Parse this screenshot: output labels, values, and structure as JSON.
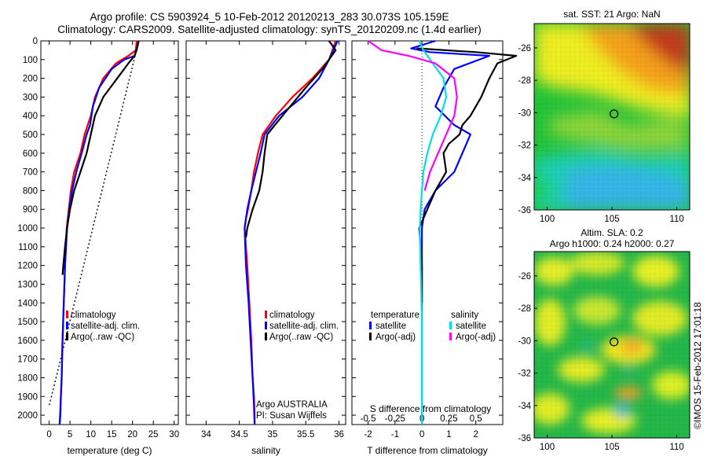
{
  "header": {
    "line1": "Argo profile: CS 5903924_5 10-Feb-2012 20120213_283 30.073S 105.159E",
    "line2": "Climatology: CARS2009. Satellite-adjusted climatology: synTS_20120209.nc (1.4d earlier)"
  },
  "colors": {
    "climatology": "#ff0000",
    "satellite": "#0000ff",
    "argo": "#000000",
    "sat_salinity": "#00e0e0",
    "argo_salinity": "#ff00ff"
  },
  "chart_data": [
    {
      "id": "temperature",
      "type": "line",
      "xlabel": "temperature (deg C)",
      "ylabel": "",
      "xlim": [
        -2,
        31
      ],
      "ylim": [
        2050,
        0
      ],
      "xticks": [
        0,
        5,
        10,
        15,
        20,
        25,
        30
      ],
      "yticks": [
        0,
        100,
        200,
        300,
        400,
        500,
        600,
        700,
        800,
        900,
        1000,
        1100,
        1200,
        1300,
        1400,
        1500,
        1600,
        1700,
        1800,
        1900,
        2000
      ],
      "legend": [
        "climatology",
        "satellite-adj. clim.",
        "Argo(..raw -QC)"
      ],
      "series": [
        {
          "name": "climatology",
          "color": "#ff0000",
          "x": [
            21,
            20.8,
            19,
            16,
            13,
            11,
            10,
            8.5,
            7.5,
            6,
            5.2,
            4.7,
            4.2,
            3.8,
            3.5,
            3.2,
            3,
            2.8,
            2.6,
            2.5
          ],
          "y": [
            0,
            50,
            80,
            120,
            200,
            300,
            400,
            500,
            600,
            700,
            800,
            900,
            1000,
            1200,
            1400,
            1600,
            1800,
            1900,
            2000,
            2050
          ]
        },
        {
          "name": "satellite-adj. clim.",
          "color": "#0000ff",
          "x": [
            21.5,
            21,
            20.5,
            18,
            15,
            12,
            10.5,
            9.8,
            9,
            7.8,
            6.5,
            5.5,
            4.8,
            4.3,
            3.8,
            3.5,
            3.2,
            3,
            2.8,
            2.7,
            2.6,
            2.5
          ],
          "y": [
            0,
            50,
            80,
            100,
            150,
            250,
            350,
            450,
            500,
            600,
            700,
            800,
            900,
            1000,
            1200,
            1400,
            1600,
            1800,
            1900,
            2000,
            2020,
            2050
          ]
        },
        {
          "name": "Argo(..raw -QC)",
          "color": "#000000",
          "x": [
            21.5,
            20.5,
            19,
            17,
            13,
            11,
            10,
            9,
            7.5,
            6,
            5,
            4.3,
            3.8,
            3.4,
            3.2
          ],
          "y": [
            0,
            80,
            120,
            180,
            300,
            400,
            500,
            600,
            700,
            800,
            900,
            1000,
            1100,
            1200,
            1250
          ]
        },
        {
          "name": "",
          "color": "#000000",
          "dashed": true,
          "x": [
            21.5,
            0
          ],
          "y": [
            0,
            1950
          ]
        }
      ]
    },
    {
      "id": "salinity",
      "type": "line",
      "xlabel": "salinity",
      "ylabel": "",
      "xlim": [
        33.7,
        36.1
      ],
      "ylim": [
        2050,
        0
      ],
      "xticks": [
        34,
        34.5,
        35,
        35.5,
        36
      ],
      "legend": [
        "climatology",
        "satellite-adj. clim.",
        "Argo(..raw -QC)"
      ],
      "annotation": [
        "Argo AUSTRALIA",
        "PI: Susan Wijffels"
      ],
      "series": [
        {
          "name": "climatology",
          "color": "#ff0000",
          "x": [
            35.95,
            35.85,
            35.6,
            35.3,
            35.05,
            34.85,
            34.78,
            34.72,
            34.68,
            34.63,
            34.6,
            34.58,
            34.62,
            34.65,
            34.68,
            34.7,
            34.72,
            34.73,
            34.73
          ],
          "y": [
            0,
            100,
            200,
            300,
            400,
            500,
            600,
            700,
            800,
            900,
            950,
            1000,
            1200,
            1400,
            1600,
            1800,
            1900,
            2000,
            2050
          ]
        },
        {
          "name": "satellite-adj. clim.",
          "color": "#0000ff",
          "x": [
            35.98,
            35.85,
            35.7,
            35.45,
            35.1,
            34.88,
            34.82,
            34.75,
            34.68,
            34.62,
            34.58,
            34.6,
            34.64,
            34.67,
            34.7,
            34.72,
            34.73
          ],
          "y": [
            0,
            100,
            200,
            300,
            400,
            500,
            600,
            700,
            800,
            900,
            1000,
            1200,
            1400,
            1600,
            1800,
            1950,
            2050
          ]
        },
        {
          "name": "Argo(..raw -QC)",
          "color": "#000000",
          "x": [
            35.85,
            35.95,
            35.75,
            35.5,
            35.15,
            34.92,
            34.88,
            34.85,
            34.8,
            34.7,
            34.62,
            34.6
          ],
          "y": [
            0,
            50,
            150,
            250,
            400,
            500,
            600,
            700,
            800,
            900,
            1000,
            1050
          ]
        }
      ]
    },
    {
      "id": "difference",
      "type": "line",
      "xlabel": "T difference from climatology",
      "xlabel2": "S difference from climatology",
      "ylabel": "",
      "xlim": [
        -2.6,
        3
      ],
      "ylim": [
        2050,
        0
      ],
      "xticks": [
        -2,
        -1,
        0,
        1,
        2
      ],
      "xticks_top": [
        -0.5,
        -0.25,
        0,
        0.25,
        0.5
      ],
      "legend_groups": [
        {
          "title": "temperature",
          "items": [
            "satellite",
            "Argo(-adj)"
          ]
        },
        {
          "title": "salinity",
          "items": [
            "satellite",
            "Argo(-adj)"
          ]
        }
      ],
      "series": [
        {
          "name": "temperature satellite",
          "color": "#0000ff",
          "x": [
            0.5,
            -0.4,
            0.3,
            2.5,
            1.2,
            0.8,
            0.5,
            1.2,
            1.8,
            1.5,
            1.2,
            0.5,
            0.1,
            0,
            0,
            0,
            0,
            0,
            0,
            0,
            0
          ],
          "y": [
            0,
            40,
            60,
            80,
            150,
            250,
            350,
            450,
            500,
            600,
            700,
            800,
            900,
            1000,
            1100,
            1200,
            1400,
            1600,
            1800,
            2000,
            2050
          ]
        },
        {
          "name": "temperature Argo(-adj)",
          "color": "#000000",
          "x": [
            -0.2,
            2,
            3.5,
            2.8,
            2.5,
            2.2,
            1.8,
            1.5,
            1.4,
            1,
            0.8,
            0.9,
            0.5,
            0.2,
            -0.1,
            0,
            0
          ],
          "y": [
            40,
            60,
            80,
            120,
            200,
            300,
            400,
            450,
            500,
            550,
            600,
            700,
            800,
            900,
            1000,
            1200,
            1400
          ]
        },
        {
          "name": "salinity satellite",
          "color": "#00e0e0",
          "x": [
            -0.1,
            0.05,
            0.3,
            0.8,
            0.9,
            0.7,
            0.4,
            0.2,
            0.05,
            0,
            -0.05,
            -0.08,
            -0.05,
            0,
            0
          ],
          "y": [
            0,
            50,
            100,
            200,
            300,
            400,
            500,
            600,
            700,
            800,
            900,
            1000,
            1200,
            1500,
            2050
          ]
        },
        {
          "name": "salinity Argo(-adj)",
          "color": "#ff00ff",
          "x": [
            -2,
            -1.5,
            -0.5,
            0.5,
            1.2,
            1.3,
            1.2,
            0.9,
            0.6,
            0.3,
            0.1
          ],
          "y": [
            0,
            50,
            80,
            120,
            200,
            300,
            400,
            500,
            600,
            700,
            800
          ]
        }
      ]
    },
    {
      "id": "sst_map",
      "type": "heatmap",
      "title": "sat. SST: 21 Argo: NaN",
      "xlim": [
        99,
        111
      ],
      "ylim": [
        -36,
        -24.5
      ],
      "xticks": [
        100,
        105,
        110
      ],
      "yticks": [
        -26,
        -28,
        -30,
        -32,
        -34,
        -36
      ],
      "marker": {
        "x": 105.159,
        "y": -30.073
      }
    },
    {
      "id": "sla_map",
      "type": "heatmap",
      "title": "Altim. SLA: 0.2",
      "subtitle": "Argo h1000: 0.24 h2000: 0.27",
      "xlim": [
        99,
        111
      ],
      "ylim": [
        -36,
        -24.5
      ],
      "xticks": [
        100,
        105,
        110
      ],
      "yticks": [
        -26,
        -28,
        -30,
        -32,
        -34,
        -36
      ],
      "marker": {
        "x": 105.159,
        "y": -30.073
      }
    }
  ],
  "footer": {
    "credit": "©IMOS 15-Feb-2012 17:01:18"
  }
}
